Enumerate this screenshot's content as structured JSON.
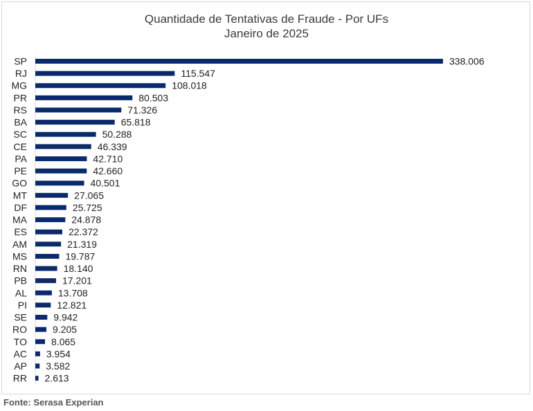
{
  "chart_data": {
    "type": "bar",
    "orientation": "horizontal",
    "title": "Quantidade de Tentativas de Fraude - Por UFs",
    "subtitle": "Janeiro de 2025",
    "xlabel": "",
    "ylabel": "",
    "grid": false,
    "legend": "none",
    "bar_color": "#0a2a6b",
    "categories": [
      "SP",
      "RJ",
      "MG",
      "PR",
      "RS",
      "BA",
      "SC",
      "CE",
      "PA",
      "PE",
      "GO",
      "MT",
      "DF",
      "MA",
      "ES",
      "AM",
      "MS",
      "RN",
      "PB",
      "AL",
      "PI",
      "SE",
      "RO",
      "TO",
      "AC",
      "AP",
      "RR"
    ],
    "values": [
      338006,
      115547,
      108018,
      80503,
      71326,
      65818,
      50288,
      46339,
      42710,
      42660,
      40501,
      27065,
      25725,
      24878,
      22372,
      21319,
      19787,
      18140,
      17201,
      13708,
      12821,
      9942,
      9205,
      8065,
      3954,
      3582,
      2613
    ],
    "value_labels": [
      "338.006",
      "115.547",
      "108.018",
      "80.503",
      "71.326",
      "65.818",
      "50.288",
      "46.339",
      "42.710",
      "42.660",
      "40.501",
      "27.065",
      "25.725",
      "24.878",
      "22.372",
      "21.319",
      "19.787",
      "18.140",
      "17.201",
      "13.708",
      "12.821",
      "9.942",
      "9.205",
      "8.065",
      "3.954",
      "3.582",
      "2.613"
    ],
    "xlim": [
      0,
      338006
    ]
  },
  "footer": {
    "source": "Fonte: Serasa Experian"
  }
}
